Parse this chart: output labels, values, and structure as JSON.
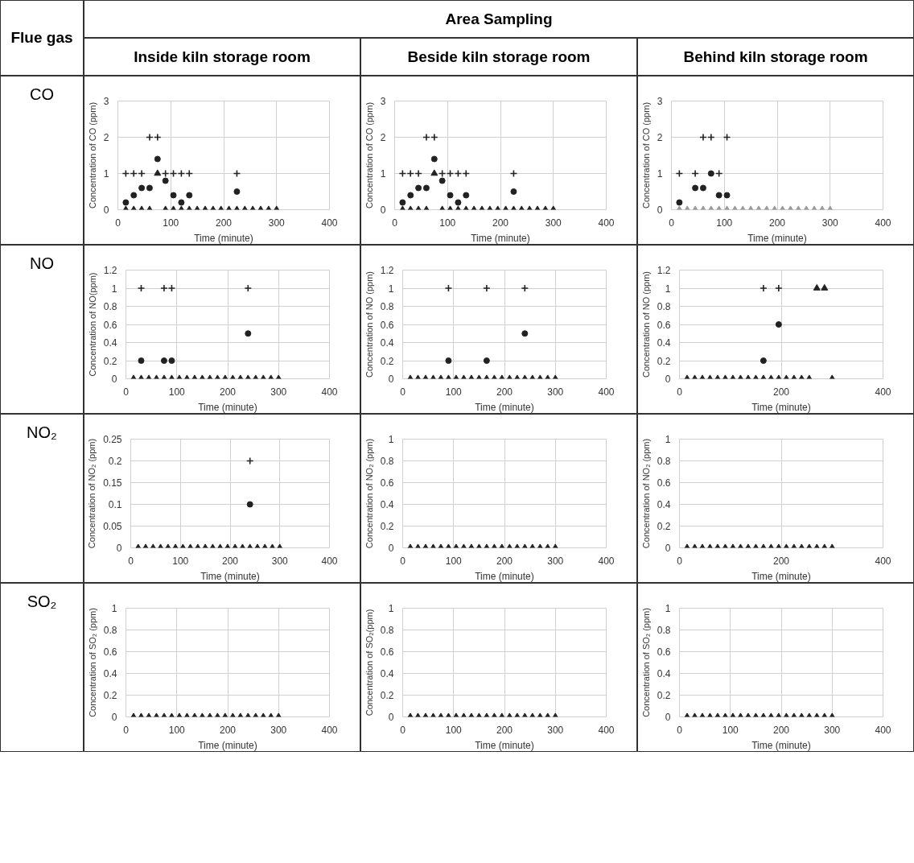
{
  "chart_data": [
    {
      "type": "scatter",
      "title": "Inside kiln storage room",
      "annotations": [
        "Flue gas",
        "Area Sampling",
        "CO"
      ],
      "ylabel": "Concentration of CO (ppm)",
      "xlabel": "Time (minute)",
      "x": [
        15,
        30,
        45,
        60,
        75,
        90,
        105,
        120,
        135,
        150,
        165,
        180,
        195,
        210,
        225,
        240,
        255,
        270,
        285,
        300
      ],
      "xlim": [
        0,
        400
      ],
      "xticks": [
        0,
        100,
        200,
        300,
        400
      ],
      "ylim": [
        0,
        3
      ],
      "yticks": [
        0,
        1,
        2,
        3
      ],
      "grid": true,
      "series": [
        {
          "marker": "cross",
          "color": "#222222",
          "values": [
            1,
            1,
            1,
            2,
            2,
            1,
            1,
            1,
            1,
            null,
            null,
            null,
            null,
            null,
            1,
            null,
            null,
            null,
            null,
            null
          ]
        },
        {
          "marker": "circle",
          "color": "#222222",
          "values": [
            0.2,
            0.4,
            0.6,
            0.6,
            1.4,
            0.8,
            0.4,
            0.2,
            0.4,
            null,
            null,
            null,
            null,
            null,
            0.5,
            null,
            null,
            null,
            null,
            null
          ]
        },
        {
          "marker": "triangle",
          "color": "#222222",
          "values": [
            0,
            0,
            0,
            0,
            1,
            0,
            0,
            0,
            0,
            0,
            0,
            0,
            0,
            0,
            0,
            0,
            0,
            0,
            0,
            0
          ]
        }
      ]
    },
    {
      "type": "scatter",
      "title": "Beside kiln storage room",
      "ylabel": "Concentration of CO (ppm)",
      "xlabel": "Time (minute)",
      "x": [
        15,
        30,
        45,
        60,
        75,
        90,
        105,
        120,
        135,
        150,
        165,
        180,
        195,
        210,
        225,
        240,
        255,
        270,
        285,
        300
      ],
      "xlim": [
        0,
        400
      ],
      "xticks": [
        0,
        100,
        200,
        300,
        400
      ],
      "ylim": [
        0,
        3
      ],
      "yticks": [
        0,
        1,
        2,
        3
      ],
      "grid": true,
      "series": [
        {
          "marker": "cross",
          "color": "#222222",
          "values": [
            1,
            1,
            1,
            2,
            2,
            1,
            1,
            1,
            1,
            null,
            null,
            null,
            null,
            null,
            1,
            null,
            null,
            null,
            null,
            null
          ]
        },
        {
          "marker": "circle",
          "color": "#222222",
          "values": [
            0.2,
            0.4,
            0.6,
            0.6,
            1.4,
            0.8,
            0.4,
            0.2,
            0.4,
            null,
            null,
            null,
            null,
            null,
            0.5,
            null,
            null,
            null,
            null,
            null
          ]
        },
        {
          "marker": "triangle",
          "color": "#222222",
          "values": [
            0,
            0,
            0,
            0,
            1,
            0,
            0,
            0,
            0,
            0,
            0,
            0,
            0,
            0,
            0,
            0,
            0,
            0,
            0,
            0
          ]
        }
      ]
    },
    {
      "type": "scatter",
      "title": "Behind kiln storage room",
      "ylabel": "Concentration of CO (ppm)",
      "xlabel": "Time (minute)",
      "x": [
        15,
        30,
        45,
        60,
        75,
        90,
        105,
        120,
        135,
        150,
        165,
        180,
        195,
        210,
        225,
        240,
        255,
        270,
        285,
        300
      ],
      "xlim": [
        0,
        400
      ],
      "xticks": [
        0,
        100,
        200,
        300,
        400
      ],
      "ylim": [
        0,
        3
      ],
      "yticks": [
        0,
        1,
        2,
        3
      ],
      "grid": true,
      "series": [
        {
          "marker": "cross",
          "color": "#222222",
          "values": [
            1,
            null,
            1,
            2,
            2,
            1,
            2,
            null,
            null,
            null,
            null,
            null,
            null,
            null,
            null,
            null,
            null,
            null,
            null,
            null
          ]
        },
        {
          "marker": "circle",
          "color": "#222222",
          "values": [
            0.2,
            null,
            0.6,
            0.6,
            1,
            0.4,
            0.4,
            null,
            null,
            null,
            null,
            null,
            null,
            null,
            null,
            null,
            null,
            null,
            null,
            null
          ]
        },
        {
          "marker": "triangle",
          "color": "#9a9a9a",
          "values": [
            0,
            0,
            0,
            0,
            0,
            0,
            0,
            0,
            0,
            0,
            0,
            0,
            0,
            0,
            0,
            0,
            0,
            0,
            0,
            0
          ]
        }
      ]
    },
    {
      "type": "scatter",
      "annotations": [
        "NO"
      ],
      "ylabel": "Concentration of NO(ppm)",
      "xlabel": "Time (minute)",
      "x": [
        15,
        30,
        45,
        60,
        75,
        90,
        105,
        120,
        135,
        150,
        165,
        180,
        195,
        210,
        225,
        240,
        255,
        270,
        285,
        300
      ],
      "xlim": [
        0,
        400
      ],
      "xticks": [
        0,
        100,
        200,
        300,
        400
      ],
      "ylim": [
        0,
        1.2
      ],
      "yticks": [
        0,
        0.2,
        0.4,
        0.6,
        0.8,
        1,
        1.2
      ],
      "grid": true,
      "series": [
        {
          "marker": "cross",
          "color": "#222222",
          "values": [
            null,
            1,
            null,
            null,
            1,
            1,
            null,
            null,
            null,
            null,
            null,
            null,
            null,
            null,
            null,
            1,
            null,
            null,
            null,
            null
          ]
        },
        {
          "marker": "circle",
          "color": "#222222",
          "values": [
            null,
            0.2,
            null,
            null,
            0.2,
            0.2,
            null,
            null,
            null,
            null,
            null,
            null,
            null,
            null,
            null,
            0.5,
            null,
            null,
            null,
            null
          ]
        },
        {
          "marker": "triangle",
          "color": "#222222",
          "values": [
            0,
            0,
            0,
            0,
            0,
            0,
            0,
            0,
            0,
            0,
            0,
            0,
            0,
            0,
            0,
            0,
            0,
            0,
            0,
            0
          ]
        }
      ]
    },
    {
      "type": "scatter",
      "ylabel": "Concentration of NO (ppm)",
      "xlabel": "Time (minute)",
      "x": [
        15,
        30,
        45,
        60,
        75,
        90,
        105,
        120,
        135,
        150,
        165,
        180,
        195,
        210,
        225,
        240,
        255,
        270,
        285,
        300
      ],
      "xlim": [
        0,
        400
      ],
      "xticks": [
        0,
        100,
        200,
        300,
        400
      ],
      "ylim": [
        0,
        1.2
      ],
      "yticks": [
        0,
        0.2,
        0.4,
        0.6,
        0.8,
        1,
        1.2
      ],
      "grid": true,
      "series": [
        {
          "marker": "cross",
          "color": "#222222",
          "values": [
            null,
            null,
            null,
            null,
            null,
            1,
            null,
            null,
            null,
            null,
            1,
            null,
            null,
            null,
            null,
            1,
            null,
            null,
            null,
            null
          ]
        },
        {
          "marker": "circle",
          "color": "#222222",
          "values": [
            null,
            null,
            null,
            null,
            null,
            0.2,
            null,
            null,
            null,
            null,
            0.2,
            null,
            null,
            null,
            null,
            0.5,
            null,
            null,
            null,
            null
          ]
        },
        {
          "marker": "triangle",
          "color": "#222222",
          "values": [
            0,
            0,
            0,
            0,
            0,
            0,
            0,
            0,
            0,
            0,
            0,
            0,
            0,
            0,
            0,
            0,
            0,
            0,
            0,
            0
          ]
        }
      ]
    },
    {
      "type": "scatter",
      "ylabel": "Concentration of NO (ppm)",
      "xlabel": "Time (minute)",
      "x": [
        15,
        30,
        45,
        60,
        75,
        90,
        105,
        120,
        135,
        150,
        165,
        180,
        195,
        210,
        225,
        240,
        255,
        270,
        285,
        300
      ],
      "xlim": [
        0,
        400
      ],
      "xticks": [
        0,
        200,
        400
      ],
      "ylim": [
        0,
        1.2
      ],
      "yticks": [
        0,
        0.2,
        0.4,
        0.6,
        0.8,
        1,
        1.2
      ],
      "grid": true,
      "series": [
        {
          "marker": "cross",
          "color": "#222222",
          "values": [
            null,
            null,
            null,
            null,
            null,
            null,
            null,
            null,
            null,
            null,
            1,
            null,
            1,
            null,
            null,
            null,
            null,
            null,
            null,
            null
          ]
        },
        {
          "marker": "circle",
          "color": "#222222",
          "values": [
            null,
            null,
            null,
            null,
            null,
            null,
            null,
            null,
            null,
            null,
            0.2,
            null,
            0.6,
            null,
            null,
            null,
            null,
            null,
            null,
            null
          ]
        },
        {
          "marker": "triangle",
          "color": "#222222",
          "values": [
            0,
            0,
            0,
            0,
            0,
            0,
            0,
            0,
            0,
            0,
            0,
            0,
            0,
            0,
            0,
            0,
            0,
            1,
            1,
            0
          ]
        }
      ]
    },
    {
      "type": "scatter",
      "annotations": [
        "NO₂"
      ],
      "ylabel": "Concentration of NO₂ (ppm)",
      "xlabel": "Time (minute)",
      "x": [
        15,
        30,
        45,
        60,
        75,
        90,
        105,
        120,
        135,
        150,
        165,
        180,
        195,
        210,
        225,
        240,
        255,
        270,
        285,
        300
      ],
      "xlim": [
        0,
        400
      ],
      "xticks": [
        0,
        100,
        200,
        300,
        400
      ],
      "ylim": [
        0,
        0.25
      ],
      "yticks": [
        0,
        0.05,
        0.1,
        0.15,
        0.2,
        0.25
      ],
      "grid": true,
      "series": [
        {
          "marker": "cross",
          "color": "#222222",
          "values": [
            null,
            null,
            null,
            null,
            null,
            null,
            null,
            null,
            null,
            null,
            null,
            null,
            null,
            null,
            null,
            0.2,
            null,
            null,
            null,
            null
          ]
        },
        {
          "marker": "circle",
          "color": "#222222",
          "values": [
            null,
            null,
            null,
            null,
            null,
            null,
            null,
            null,
            null,
            null,
            null,
            null,
            null,
            null,
            null,
            0.1,
            null,
            null,
            null,
            null
          ]
        },
        {
          "marker": "triangle",
          "color": "#222222",
          "values": [
            0,
            0,
            0,
            0,
            0,
            0,
            0,
            0,
            0,
            0,
            0,
            0,
            0,
            0,
            0,
            0,
            0,
            0,
            0,
            0
          ]
        }
      ]
    },
    {
      "type": "scatter",
      "ylabel": "Concentration of NO₂ (ppm)",
      "xlabel": "Time (minute)",
      "x": [
        15,
        30,
        45,
        60,
        75,
        90,
        105,
        120,
        135,
        150,
        165,
        180,
        195,
        210,
        225,
        240,
        255,
        270,
        285,
        300
      ],
      "xlim": [
        0,
        400
      ],
      "xticks": [
        0,
        100,
        200,
        300,
        400
      ],
      "ylim": [
        0,
        1
      ],
      "yticks": [
        0,
        0.2,
        0.4,
        0.6,
        0.8,
        1
      ],
      "grid": true,
      "series": [
        {
          "marker": "triangle",
          "color": "#222222",
          "values": [
            0,
            0,
            0,
            0,
            0,
            0,
            0,
            0,
            0,
            0,
            0,
            0,
            0,
            0,
            0,
            0,
            0,
            0,
            0,
            0
          ]
        }
      ]
    },
    {
      "type": "scatter",
      "ylabel": "Concentration of NO₂ (ppm)",
      "xlabel": "Time (minute)",
      "x": [
        15,
        30,
        45,
        60,
        75,
        90,
        105,
        120,
        135,
        150,
        165,
        180,
        195,
        210,
        225,
        240,
        255,
        270,
        285,
        300
      ],
      "xlim": [
        0,
        400
      ],
      "xticks": [
        0,
        200,
        400
      ],
      "ylim": [
        0,
        1
      ],
      "yticks": [
        0,
        0.2,
        0.4,
        0.6,
        0.8,
        1
      ],
      "grid": true,
      "series": [
        {
          "marker": "triangle",
          "color": "#222222",
          "values": [
            0,
            0,
            0,
            0,
            0,
            0,
            0,
            0,
            0,
            0,
            0,
            0,
            0,
            0,
            0,
            0,
            0,
            0,
            0,
            0
          ]
        }
      ]
    },
    {
      "type": "scatter",
      "annotations": [
        "SO₂"
      ],
      "ylabel": "Concentration of SO₂ (ppm)",
      "xlabel": "Time (minute)",
      "x": [
        15,
        30,
        45,
        60,
        75,
        90,
        105,
        120,
        135,
        150,
        165,
        180,
        195,
        210,
        225,
        240,
        255,
        270,
        285,
        300
      ],
      "xlim": [
        0,
        400
      ],
      "xticks": [
        0,
        100,
        200,
        300,
        400
      ],
      "ylim": [
        0,
        1
      ],
      "yticks": [
        0,
        0.2,
        0.4,
        0.6,
        0.8,
        1
      ],
      "grid": true,
      "series": [
        {
          "marker": "triangle",
          "color": "#222222",
          "values": [
            0,
            0,
            0,
            0,
            0,
            0,
            0,
            0,
            0,
            0,
            0,
            0,
            0,
            0,
            0,
            0,
            0,
            0,
            0,
            0
          ]
        }
      ]
    },
    {
      "type": "scatter",
      "ylabel": "Concentration of SO₂(ppm)",
      "xlabel": "Time (minute)",
      "x": [
        15,
        30,
        45,
        60,
        75,
        90,
        105,
        120,
        135,
        150,
        165,
        180,
        195,
        210,
        225,
        240,
        255,
        270,
        285,
        300
      ],
      "xlim": [
        0,
        400
      ],
      "xticks": [
        0,
        100,
        200,
        300,
        400
      ],
      "ylim": [
        0,
        1
      ],
      "yticks": [
        0,
        0.2,
        0.4,
        0.6,
        0.8,
        1
      ],
      "grid": true,
      "series": [
        {
          "marker": "triangle",
          "color": "#222222",
          "values": [
            0,
            0,
            0,
            0,
            0,
            0,
            0,
            0,
            0,
            0,
            0,
            0,
            0,
            0,
            0,
            0,
            0,
            0,
            0,
            0
          ]
        }
      ]
    },
    {
      "type": "scatter",
      "ylabel": "Concentration of SO₂ (ppm)",
      "xlabel": "Time (minute)",
      "x": [
        15,
        30,
        45,
        60,
        75,
        90,
        105,
        120,
        135,
        150,
        165,
        180,
        195,
        210,
        225,
        240,
        255,
        270,
        285,
        300
      ],
      "xlim": [
        0,
        400
      ],
      "xticks": [
        0,
        100,
        200,
        300,
        400
      ],
      "ylim": [
        0,
        1
      ],
      "yticks": [
        0,
        0.2,
        0.4,
        0.6,
        0.8,
        1
      ],
      "grid": true,
      "series": [
        {
          "marker": "triangle",
          "color": "#222222",
          "values": [
            0,
            0,
            0,
            0,
            0,
            0,
            0,
            0,
            0,
            0,
            0,
            0,
            0,
            0,
            0,
            0,
            0,
            0,
            0,
            0
          ]
        }
      ]
    }
  ]
}
